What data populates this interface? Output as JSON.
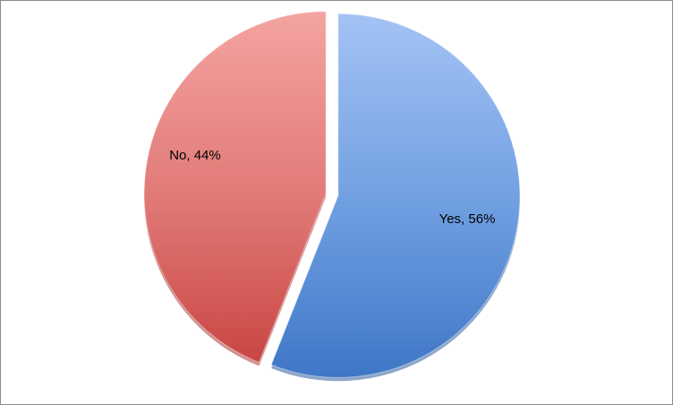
{
  "chart_data": {
    "type": "pie",
    "title": "",
    "slices": [
      {
        "label": "Yes",
        "value": 56,
        "data_label": "Yes, 56%",
        "color": "#5b8ed6"
      },
      {
        "label": "No",
        "value": 44,
        "data_label": "No, 44%",
        "color": "#d9625f"
      }
    ],
    "legend": "none",
    "exploded": true
  }
}
